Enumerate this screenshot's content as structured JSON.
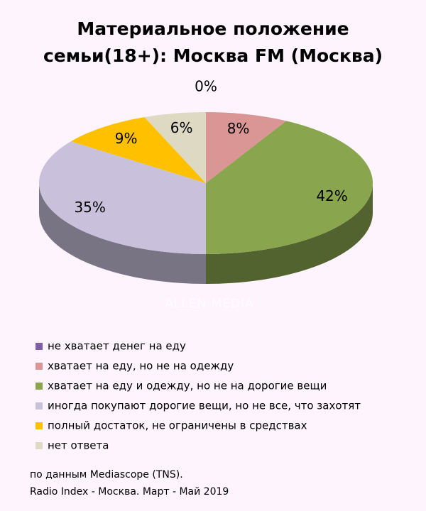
{
  "chart_data": {
    "type": "pie3d",
    "title": "Материальное положение семьи(18+): Москва FM (Москва)",
    "categories": [
      "не хватает денег на еду",
      "хватает на еду, но не на одежду",
      "хватает на еду и одежду, но не на дорогие вещи",
      "иногда покупают дорогие вещи, но не все, что захотят",
      "полный достаток, не ограничены в средствах",
      "нет ответа"
    ],
    "values": [
      0,
      8,
      42,
      35,
      9,
      6
    ],
    "value_labels": [
      "0%",
      "8%",
      "42%",
      "35%",
      "9%",
      "6%"
    ],
    "colors": [
      "#7e5ea6",
      "#d99694",
      "#89a54e",
      "#c9c1dc",
      "#ffc000",
      "#ddd9c3"
    ],
    "watermark": "ALLEN MEDIA",
    "source": [
      "по данным Mediascope (TNS).",
      "Radio Index - Москва. Март - Май 2019"
    ]
  }
}
